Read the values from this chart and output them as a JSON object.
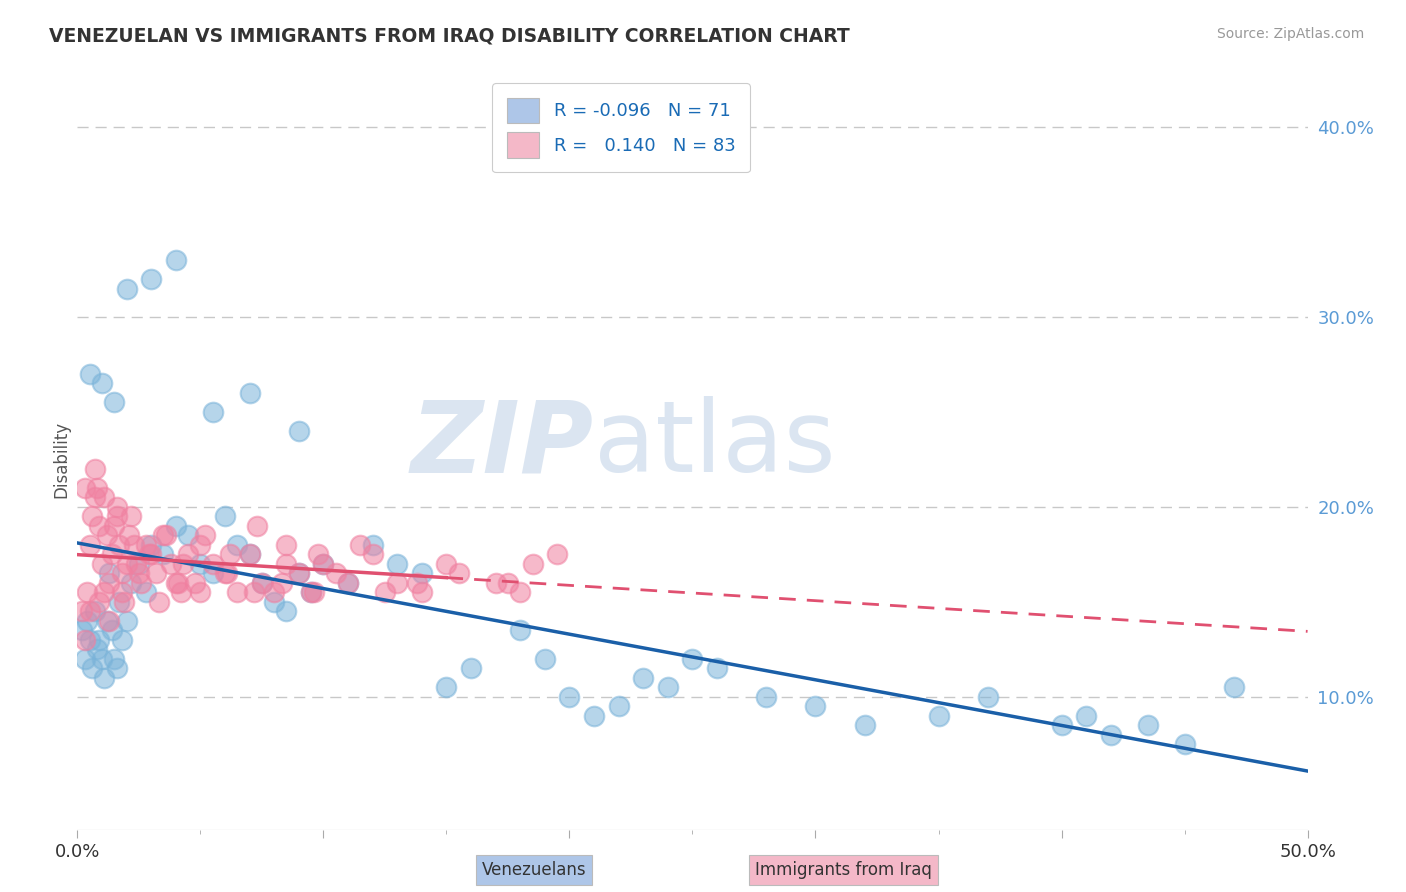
{
  "title": "VENEZUELAN VS IMMIGRANTS FROM IRAQ DISABILITY CORRELATION CHART",
  "source": "Source: ZipAtlas.com",
  "ylabel": "Disability",
  "xlim": [
    0.0,
    50.0
  ],
  "ylim": [
    3.0,
    42.0
  ],
  "xtick_positions": [
    0.0,
    10.0,
    20.0,
    30.0,
    40.0,
    50.0
  ],
  "xtick_labels": [
    "0.0%",
    "",
    "",
    "",
    "",
    "50.0%"
  ],
  "yticks_right": [
    10.0,
    20.0,
    30.0,
    40.0
  ],
  "yticks_right_labels": [
    "10.0%",
    "20.0%",
    "30.0%",
    "40.0%"
  ],
  "legend_color1": "#aec6e8",
  "legend_color2": "#f4b8c8",
  "dot_color_blue": "#7ab3d9",
  "dot_color_pink": "#f080a0",
  "trend_color_blue": "#1a5fa8",
  "trend_color_pink": "#e05070",
  "watermark_zip": "ZIP",
  "watermark_atlas": "atlas",
  "watermark_color": "#ccd8e8",
  "background_color": "#ffffff",
  "grid_color": "#c8c8c8",
  "title_color": "#333333",
  "source_color": "#999999",
  "axis_label_color": "#555555",
  "right_tick_color": "#5b9bd5",
  "bottom_legend_color1": "#aec6e8",
  "bottom_legend_color2": "#f4b8c8",
  "venezuelan_x": [
    0.2,
    0.3,
    0.4,
    0.5,
    0.6,
    0.7,
    0.8,
    0.9,
    1.0,
    1.1,
    1.2,
    1.3,
    1.4,
    1.5,
    1.6,
    1.7,
    1.8,
    2.0,
    2.2,
    2.5,
    2.8,
    3.0,
    3.5,
    4.0,
    4.5,
    5.0,
    5.5,
    6.0,
    6.5,
    7.0,
    7.5,
    8.0,
    8.5,
    9.0,
    9.5,
    10.0,
    11.0,
    12.0,
    13.0,
    14.0,
    15.0,
    16.0,
    18.0,
    19.0,
    20.0,
    21.0,
    22.0,
    23.0,
    24.0,
    25.0,
    26.0,
    28.0,
    30.0,
    32.0,
    35.0,
    37.0,
    40.0,
    41.0,
    42.0,
    43.5,
    45.0,
    47.0,
    0.5,
    1.0,
    1.5,
    2.0,
    3.0,
    4.0,
    5.5,
    7.0,
    9.0
  ],
  "venezuelan_y": [
    13.5,
    12.0,
    14.0,
    13.0,
    11.5,
    14.5,
    12.5,
    13.0,
    12.0,
    11.0,
    14.0,
    16.5,
    13.5,
    12.0,
    11.5,
    15.0,
    13.0,
    14.0,
    16.0,
    17.0,
    15.5,
    18.0,
    17.5,
    19.0,
    18.5,
    17.0,
    16.5,
    19.5,
    18.0,
    17.5,
    16.0,
    15.0,
    14.5,
    16.5,
    15.5,
    17.0,
    16.0,
    18.0,
    17.0,
    16.5,
    10.5,
    11.5,
    13.5,
    12.0,
    10.0,
    9.0,
    9.5,
    11.0,
    10.5,
    12.0,
    11.5,
    10.0,
    9.5,
    8.5,
    9.0,
    10.0,
    8.5,
    9.0,
    8.0,
    8.5,
    7.5,
    10.5,
    27.0,
    26.5,
    25.5,
    31.5,
    32.0,
    33.0,
    25.0,
    26.0,
    24.0
  ],
  "iraq_x": [
    0.2,
    0.3,
    0.4,
    0.5,
    0.6,
    0.7,
    0.8,
    0.9,
    1.0,
    1.1,
    1.2,
    1.3,
    1.4,
    1.5,
    1.6,
    1.7,
    1.8,
    1.9,
    2.0,
    2.1,
    2.2,
    2.4,
    2.6,
    2.8,
    3.0,
    3.2,
    3.5,
    3.8,
    4.0,
    4.2,
    4.5,
    4.8,
    5.0,
    5.5,
    6.0,
    6.5,
    7.0,
    7.5,
    8.0,
    8.5,
    9.0,
    9.5,
    10.0,
    11.0,
    12.0,
    13.0,
    14.0,
    15.0,
    17.0,
    18.0,
    0.3,
    0.7,
    1.1,
    1.6,
    2.3,
    2.9,
    3.6,
    4.3,
    5.2,
    6.2,
    7.3,
    8.5,
    9.8,
    11.5,
    0.5,
    0.9,
    1.3,
    1.8,
    2.5,
    3.3,
    4.1,
    5.0,
    6.1,
    7.2,
    8.3,
    9.6,
    10.5,
    12.5,
    13.8,
    15.5,
    17.5,
    18.5,
    19.5
  ],
  "iraq_y": [
    14.5,
    13.0,
    15.5,
    18.0,
    19.5,
    20.5,
    21.0,
    19.0,
    17.0,
    15.5,
    18.5,
    16.0,
    17.5,
    19.0,
    20.0,
    18.0,
    16.5,
    15.0,
    17.0,
    18.5,
    19.5,
    17.0,
    16.0,
    18.0,
    17.5,
    16.5,
    18.5,
    17.0,
    16.0,
    15.5,
    17.5,
    16.0,
    18.0,
    17.0,
    16.5,
    15.5,
    17.5,
    16.0,
    15.5,
    17.0,
    16.5,
    15.5,
    17.0,
    16.0,
    17.5,
    16.0,
    15.5,
    17.0,
    16.0,
    15.5,
    21.0,
    22.0,
    20.5,
    19.5,
    18.0,
    17.5,
    18.5,
    17.0,
    18.5,
    17.5,
    19.0,
    18.0,
    17.5,
    18.0,
    14.5,
    15.0,
    14.0,
    15.5,
    16.5,
    15.0,
    16.0,
    15.5,
    16.5,
    15.5,
    16.0,
    15.5,
    16.5,
    15.5,
    16.0,
    16.5,
    16.0,
    17.0,
    17.5
  ]
}
